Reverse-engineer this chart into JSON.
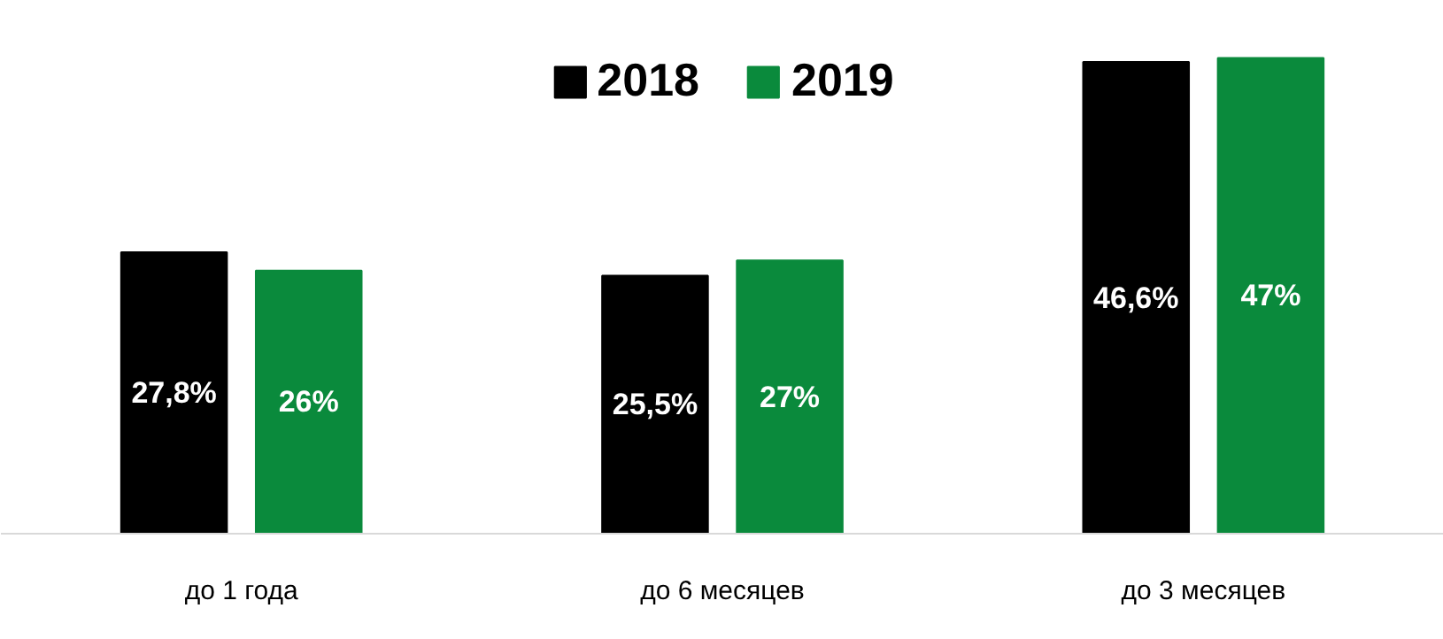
{
  "chart_data": {
    "type": "bar",
    "categories": [
      "до 1 года",
      "до 6 месяцев",
      "до 3 месяцев"
    ],
    "series": [
      {
        "name": "2018",
        "color": "#000000",
        "values": [
          27.8,
          25.5,
          46.6
        ],
        "value_labels": [
          "27,8%",
          "25,5%",
          "46,6%"
        ]
      },
      {
        "name": "2019",
        "color": "#0a8a3c",
        "values": [
          26,
          27,
          47
        ],
        "value_labels": [
          "26%",
          "27%",
          "47%"
        ]
      }
    ],
    "tick_labels": "x",
    "legend": "top",
    "grid": false
  }
}
